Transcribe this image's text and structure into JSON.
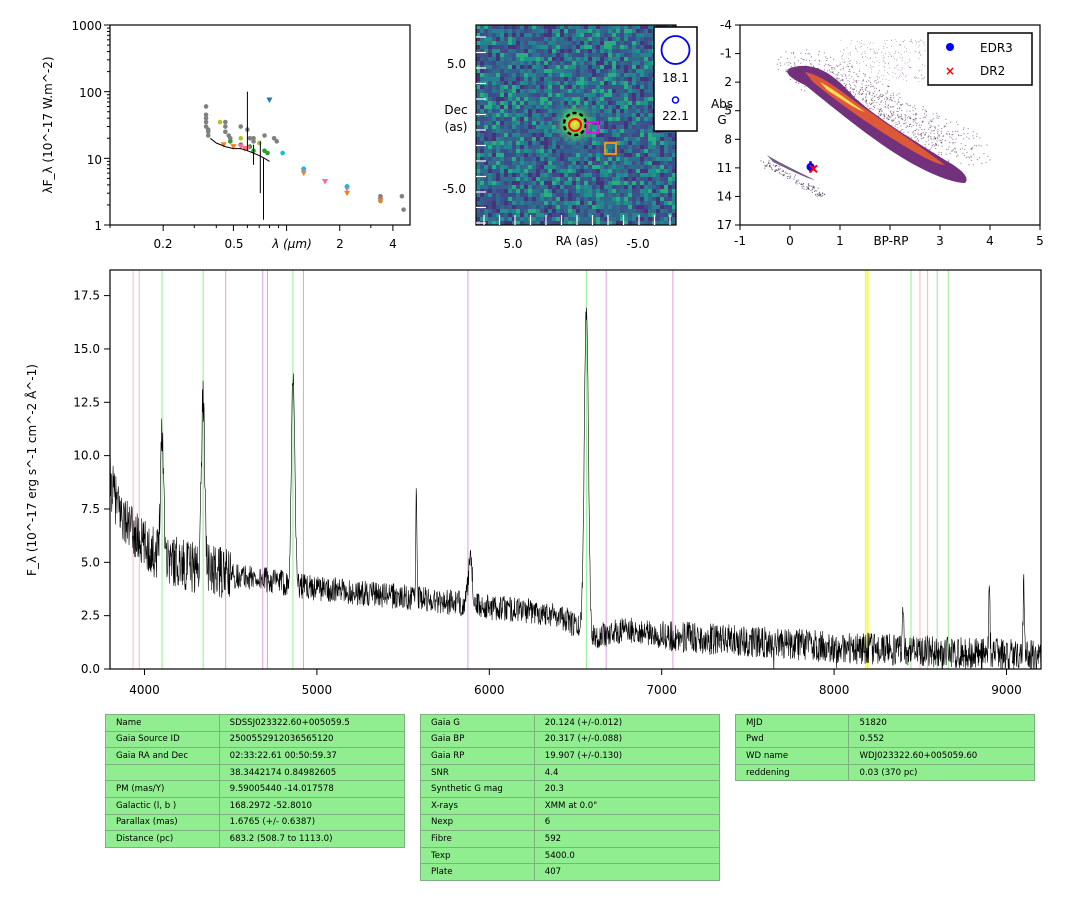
{
  "sed_panel": {
    "xlabel": "λ (μm)",
    "ylabel": "λF_λ (10^-17 W.m^-2)",
    "x_ticks": [
      "0.2",
      "0.5",
      "2",
      "4"
    ],
    "y_ticks": [
      "1000",
      "100",
      "10",
      "1"
    ],
    "xlim": [
      0.1,
      5.0
    ],
    "ylim": [
      1,
      1000
    ],
    "xscale": "log",
    "yscale": "log"
  },
  "image_panel": {
    "xlabel": "RA (as)",
    "ylabel": "Dec (as)",
    "ylabel_line1": "Dec",
    "ylabel_line2": "(as)",
    "x_ticks": [
      "5.0",
      "-5.0"
    ],
    "y_ticks": [
      "5.0",
      "-5.0"
    ],
    "legend": [
      {
        "label": "18.1",
        "symbol": "large-circle",
        "color": "#0000ff"
      },
      {
        "label": "22.1",
        "symbol": "small-circle",
        "color": "#0000ff"
      }
    ]
  },
  "hr_panel": {
    "xlabel": "BP-RP",
    "ylabel_lines": [
      "Abs",
      "G"
    ],
    "x_ticks": [
      "-1",
      "0",
      "1",
      "3",
      "4",
      "5"
    ],
    "y_ticks": [
      "-4",
      "-1",
      "2",
      "5",
      "8",
      "11",
      "14",
      "17"
    ],
    "xlim": [
      -1,
      5
    ],
    "ylim": [
      17,
      -4
    ],
    "legend": [
      {
        "label": "EDR3",
        "marker": "circle",
        "color": "#0000ff"
      },
      {
        "label": "DR2",
        "marker": "x",
        "color": "#ff0000"
      }
    ]
  },
  "spectrum_panel": {
    "ylabel": "F_λ (10^-17 erg s^-1 cm^-2 Å^-1)",
    "x_ticks": [
      "4000",
      "5000",
      "6000",
      "7000",
      "8000",
      "9000"
    ],
    "y_ticks": [
      "0.0",
      "2.5",
      "5.0",
      "7.5",
      "10.0",
      "12.5",
      "15.0",
      "17.5"
    ],
    "xlim": [
      3800,
      9200
    ],
    "ylim": [
      0,
      18.7
    ]
  },
  "tables": {
    "table1": [
      [
        "Name",
        "SDSSJ023322.60+005059.5"
      ],
      [
        "Gaia Source ID",
        "2500552912036565120"
      ],
      [
        "Gaia RA and Dec",
        "02:33:22.61    00:50:59.37"
      ],
      [
        "",
        "38.3442174    0.84982605"
      ],
      [
        "PM (mas/Y)",
        "9.59005440    -14.017578"
      ],
      [
        "Galactic (l, b )",
        "168.2972    -52.8010"
      ],
      [
        "Parallax (mas)",
        "1.6765 (+/- 0.6387)"
      ],
      [
        "Distance (pc)",
        "683.2 (508.7 to 1113.0)"
      ]
    ],
    "table2": [
      [
        "Gaia G",
        "20.124 (+/-0.012)"
      ],
      [
        "Gaia BP",
        "20.317 (+/-0.088)"
      ],
      [
        "Gaia RP",
        "19.907 (+/-0.130)"
      ],
      [
        "SNR",
        "4.4"
      ],
      [
        "Synthetic G mag",
        "20.3"
      ],
      [
        "X-rays",
        "XMM at 0.0\""
      ],
      [
        "Nexp",
        "6"
      ],
      [
        "Fibre",
        "592"
      ],
      [
        "Texp",
        "5400.0"
      ],
      [
        "Plate",
        "407"
      ]
    ],
    "table3": [
      [
        "MJD",
        "51820"
      ],
      [
        "Pwd",
        "0.552"
      ],
      [
        "WD name",
        "WDJ023322.60+005059.60"
      ],
      [
        "reddening",
        "0.03 (370 pc)"
      ]
    ]
  },
  "chart_data": [
    {
      "type": "scatter",
      "xscale": "log",
      "yscale": "log",
      "xlim": [
        0.1,
        5.0
      ],
      "ylim": [
        1,
        1000
      ],
      "xlabel": "λ (μm)",
      "ylabel": "λF_λ (10^-17 W.m^-2)",
      "series": [
        {
          "color": "#808080",
          "marker": "circle",
          "x": [
            0.35,
            0.35,
            0.35,
            0.35,
            0.35,
            0.36,
            0.36,
            0.36,
            0.45,
            0.45,
            0.45,
            0.47,
            0.48,
            0.48,
            0.55,
            0.6,
            0.62,
            0.65,
            0.65,
            0.75,
            0.85,
            0.88,
            3.4,
            3.4,
            3.4,
            4.5,
            4.6
          ],
          "y": [
            60,
            45,
            40,
            35,
            30,
            27,
            25,
            22,
            35,
            30,
            25,
            22,
            20,
            18,
            30,
            27,
            20,
            20,
            18,
            22,
            20,
            18,
            2.7,
            2.5,
            2.3,
            2.7,
            1.7
          ]
        },
        {
          "color": "#2ca02c",
          "marker": "circle",
          "x": [
            0.48,
            0.55,
            0.62,
            0.65,
            0.75,
            0.78
          ],
          "y": [
            18,
            16,
            15,
            13,
            13,
            12
          ]
        },
        {
          "color": "#ff7f0e",
          "marker": "triangle-down",
          "x": [
            0.44,
            0.5,
            0.58,
            1.25,
            1.65,
            2.2,
            3.4
          ],
          "y": [
            16,
            15,
            14,
            6,
            4.5,
            3,
            2.3
          ]
        },
        {
          "color": "#ff69b4",
          "marker": "triangle-down",
          "x": [
            0.55,
            0.6,
            1.25,
            1.65,
            2.2
          ],
          "y": [
            15,
            14,
            6.5,
            4.5,
            3.5
          ]
        },
        {
          "color": "#17becf",
          "marker": "circle",
          "x": [
            0.95,
            1.25,
            2.2
          ],
          "y": [
            12,
            7,
            3.8
          ]
        },
        {
          "color": "#bcbd22",
          "marker": "circle",
          "x": [
            0.42,
            0.55,
            0.7
          ],
          "y": [
            35,
            20,
            17
          ]
        },
        {
          "color": "#1f77b4",
          "marker": "triangle-down",
          "x": [
            0.8
          ],
          "y": [
            75
          ]
        },
        {
          "color": "#000000",
          "marker": "line",
          "x": [
            0.37,
            0.4,
            0.45,
            0.5,
            0.55,
            0.6,
            0.65,
            0.7,
            0.75,
            0.8
          ],
          "y": [
            20,
            17,
            15,
            14,
            14,
            13,
            12,
            11,
            10,
            9
          ]
        }
      ]
    },
    {
      "type": "scatter",
      "xlabel": "BP-RP",
      "ylabel": "Abs G",
      "xlim": [
        -1,
        5
      ],
      "ylim": [
        17,
        -4
      ],
      "series": [
        {
          "name": "EDR3",
          "color": "#0000ff",
          "marker": "circle",
          "x": [
            0.41
          ],
          "y": [
            10.9
          ],
          "yerr": [
            0.6
          ]
        },
        {
          "name": "DR2",
          "color": "#ff0000",
          "marker": "x",
          "x": [
            0.47
          ],
          "y": [
            11.1
          ]
        }
      ]
    },
    {
      "type": "line",
      "xlabel": "",
      "ylabel": "F_λ (10^-17 erg s^-1 cm^-2 Å^-1)",
      "xlim": [
        3800,
        9200
      ],
      "ylim": [
        0,
        18.7
      ],
      "continuum": {
        "x": [
          3800,
          3850,
          3900,
          3950,
          4000,
          4050,
          4100,
          4200,
          4300,
          4400,
          4500,
          4600,
          4700,
          4800,
          4900,
          5000,
          5200,
          5400,
          5600,
          5800,
          6000,
          6200,
          6400,
          6600,
          6800,
          7000,
          7200,
          7400,
          7600,
          7800,
          8000,
          8200,
          8400,
          8600,
          8800,
          9000,
          9200
        ],
        "y": [
          8.8,
          7.5,
          6.8,
          6.2,
          5.8,
          5.5,
          5.3,
          5.0,
          4.7,
          4.6,
          4.4,
          4.3,
          4.2,
          4.05,
          3.9,
          3.8,
          3.6,
          3.45,
          3.3,
          3.1,
          2.9,
          2.75,
          2.55,
          1.5,
          1.85,
          1.55,
          1.45,
          1.35,
          1.25,
          1.15,
          1.0,
          0.95,
          0.9,
          0.8,
          0.75,
          0.7,
          0.65
        ]
      },
      "emission_lines": [
        {
          "x": 4102,
          "peak": 11.0,
          "width": 10
        },
        {
          "x": 4340,
          "peak": 12.8,
          "width": 10
        },
        {
          "x": 4862,
          "peak": 13.8,
          "width": 10
        },
        {
          "x": 5577,
          "peak": 9.0,
          "width": 3
        },
        {
          "x": 5890,
          "peak": 5.0,
          "width": 12
        },
        {
          "x": 6563,
          "peak": 17.0,
          "width": 12
        },
        {
          "x": 8400,
          "peak": 3.0,
          "width": 4
        },
        {
          "x": 8900,
          "peak": 3.5,
          "width": 4
        },
        {
          "x": 9100,
          "peak": 3.8,
          "width": 4
        }
      ],
      "marker_lines": [
        {
          "x": 3934,
          "color": "#ffb6c1"
        },
        {
          "x": 3970,
          "color": "#ffb6c1"
        },
        {
          "x": 4102,
          "color": "#90ee90"
        },
        {
          "x": 4340,
          "color": "#90ee90"
        },
        {
          "x": 4471,
          "color": "#dda0dd"
        },
        {
          "x": 4686,
          "color": "#dda0dd"
        },
        {
          "x": 4713,
          "color": "#dda0dd"
        },
        {
          "x": 4861,
          "color": "#90ee90"
        },
        {
          "x": 4922,
          "color": "#dda0dd"
        },
        {
          "x": 5876,
          "color": "#dda0dd"
        },
        {
          "x": 6563,
          "color": "#90ee90"
        },
        {
          "x": 6678,
          "color": "#dda0dd"
        },
        {
          "x": 7065,
          "color": "#dda0dd"
        },
        {
          "x": 8183,
          "color": "#ffff00"
        },
        {
          "x": 8195,
          "color": "#ffff00"
        },
        {
          "x": 8446,
          "color": "#90ee90"
        },
        {
          "x": 8498,
          "color": "#ffb6c1"
        },
        {
          "x": 8542,
          "color": "#ffb6c1"
        },
        {
          "x": 8598,
          "color": "#90ee90"
        },
        {
          "x": 8662,
          "color": "#90ee90"
        }
      ]
    }
  ]
}
